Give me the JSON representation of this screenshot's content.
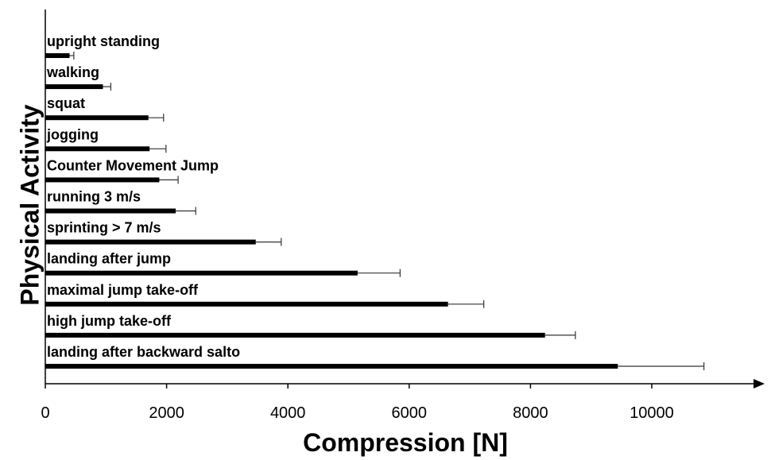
{
  "chart_data": {
    "type": "bar",
    "orientation": "horizontal",
    "xlabel": "Compression [N]",
    "ylabel": "Physical Activity",
    "xlim": [
      0,
      11800
    ],
    "xticks": [
      "0",
      "2000",
      "4000",
      "6000",
      "8000",
      "10000"
    ],
    "grid": false,
    "categories": [
      "upright standing",
      "walking",
      "squat",
      "jogging",
      "Counter Movement Jump",
      "running 3 m/s",
      "sprinting > 7 m/s",
      "landing after jump",
      "maximal jump take-off",
      "high jump take-off",
      "landing after backward salto"
    ],
    "values": [
      400,
      950,
      1700,
      1720,
      1880,
      2150,
      3470,
      5150,
      6640,
      8240,
      9440
    ],
    "error": [
      70,
      130,
      250,
      270,
      310,
      330,
      420,
      700,
      590,
      500,
      1420
    ],
    "bar_color": "#000000"
  }
}
